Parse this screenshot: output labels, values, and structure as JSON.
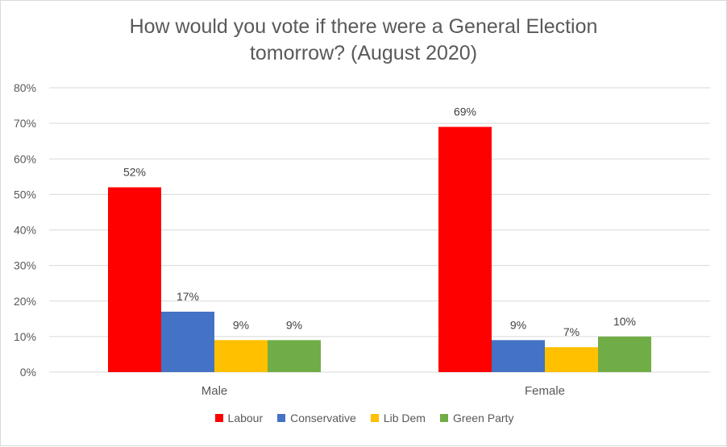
{
  "chart_data": {
    "type": "bar",
    "title": "How would you vote if there were a General Election tomorrow? (August 2020)",
    "categories": [
      "Male",
      "Female"
    ],
    "series": [
      {
        "name": "Labour",
        "color": "#ff0000",
        "values": [
          52,
          69
        ],
        "labels": [
          "52%",
          "69%"
        ]
      },
      {
        "name": "Conservative",
        "color": "#4472c4",
        "values": [
          17,
          9
        ],
        "labels": [
          "17%",
          "9%"
        ]
      },
      {
        "name": "Lib Dem",
        "color": "#ffc000",
        "values": [
          9,
          7
        ],
        "labels": [
          "9%",
          "7%"
        ]
      },
      {
        "name": "Green Party",
        "color": "#70ad47",
        "values": [
          9,
          10
        ],
        "labels": [
          "9%",
          "10%"
        ]
      }
    ],
    "ylim": [
      0,
      80
    ],
    "yticks": [
      "0%",
      "10%",
      "20%",
      "30%",
      "40%",
      "50%",
      "60%",
      "70%",
      "80%"
    ],
    "grid": true,
    "legend_position": "bottom"
  }
}
